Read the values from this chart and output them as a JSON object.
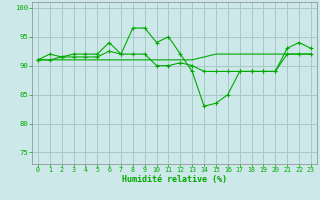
{
  "xlabel": "Humidité relative (%)",
  "background_color": "#cce8e8",
  "grid_color": "#aac8c8",
  "line_color": "#00aa00",
  "tick_color": "#00aa00",
  "x_ticks": [
    0,
    1,
    2,
    3,
    4,
    5,
    6,
    7,
    8,
    9,
    10,
    11,
    12,
    13,
    14,
    15,
    16,
    17,
    18,
    19,
    20,
    21,
    22,
    23
  ],
  "y_ticks": [
    75,
    80,
    85,
    90,
    95,
    100
  ],
  "ylim": [
    73,
    101
  ],
  "xlim": [
    -0.5,
    23.5
  ],
  "series1": [
    91,
    92,
    91.5,
    92,
    92,
    92,
    94,
    92,
    96.5,
    96.5,
    94,
    95,
    92,
    89,
    83,
    83.5,
    85,
    89,
    89,
    89,
    89,
    93,
    94,
    93
  ],
  "series2": [
    91,
    91,
    91.5,
    91.5,
    91.5,
    91.5,
    92.5,
    92,
    92,
    92,
    90,
    90,
    90.5,
    90,
    89,
    89,
    89,
    89,
    89,
    89,
    89,
    92,
    92,
    92
  ],
  "series3": [
    91,
    91,
    91,
    91,
    91,
    91,
    91,
    91,
    91,
    91,
    91,
    91,
    91,
    91,
    91.5,
    92,
    92,
    92,
    92,
    92,
    92,
    92,
    92,
    92
  ]
}
